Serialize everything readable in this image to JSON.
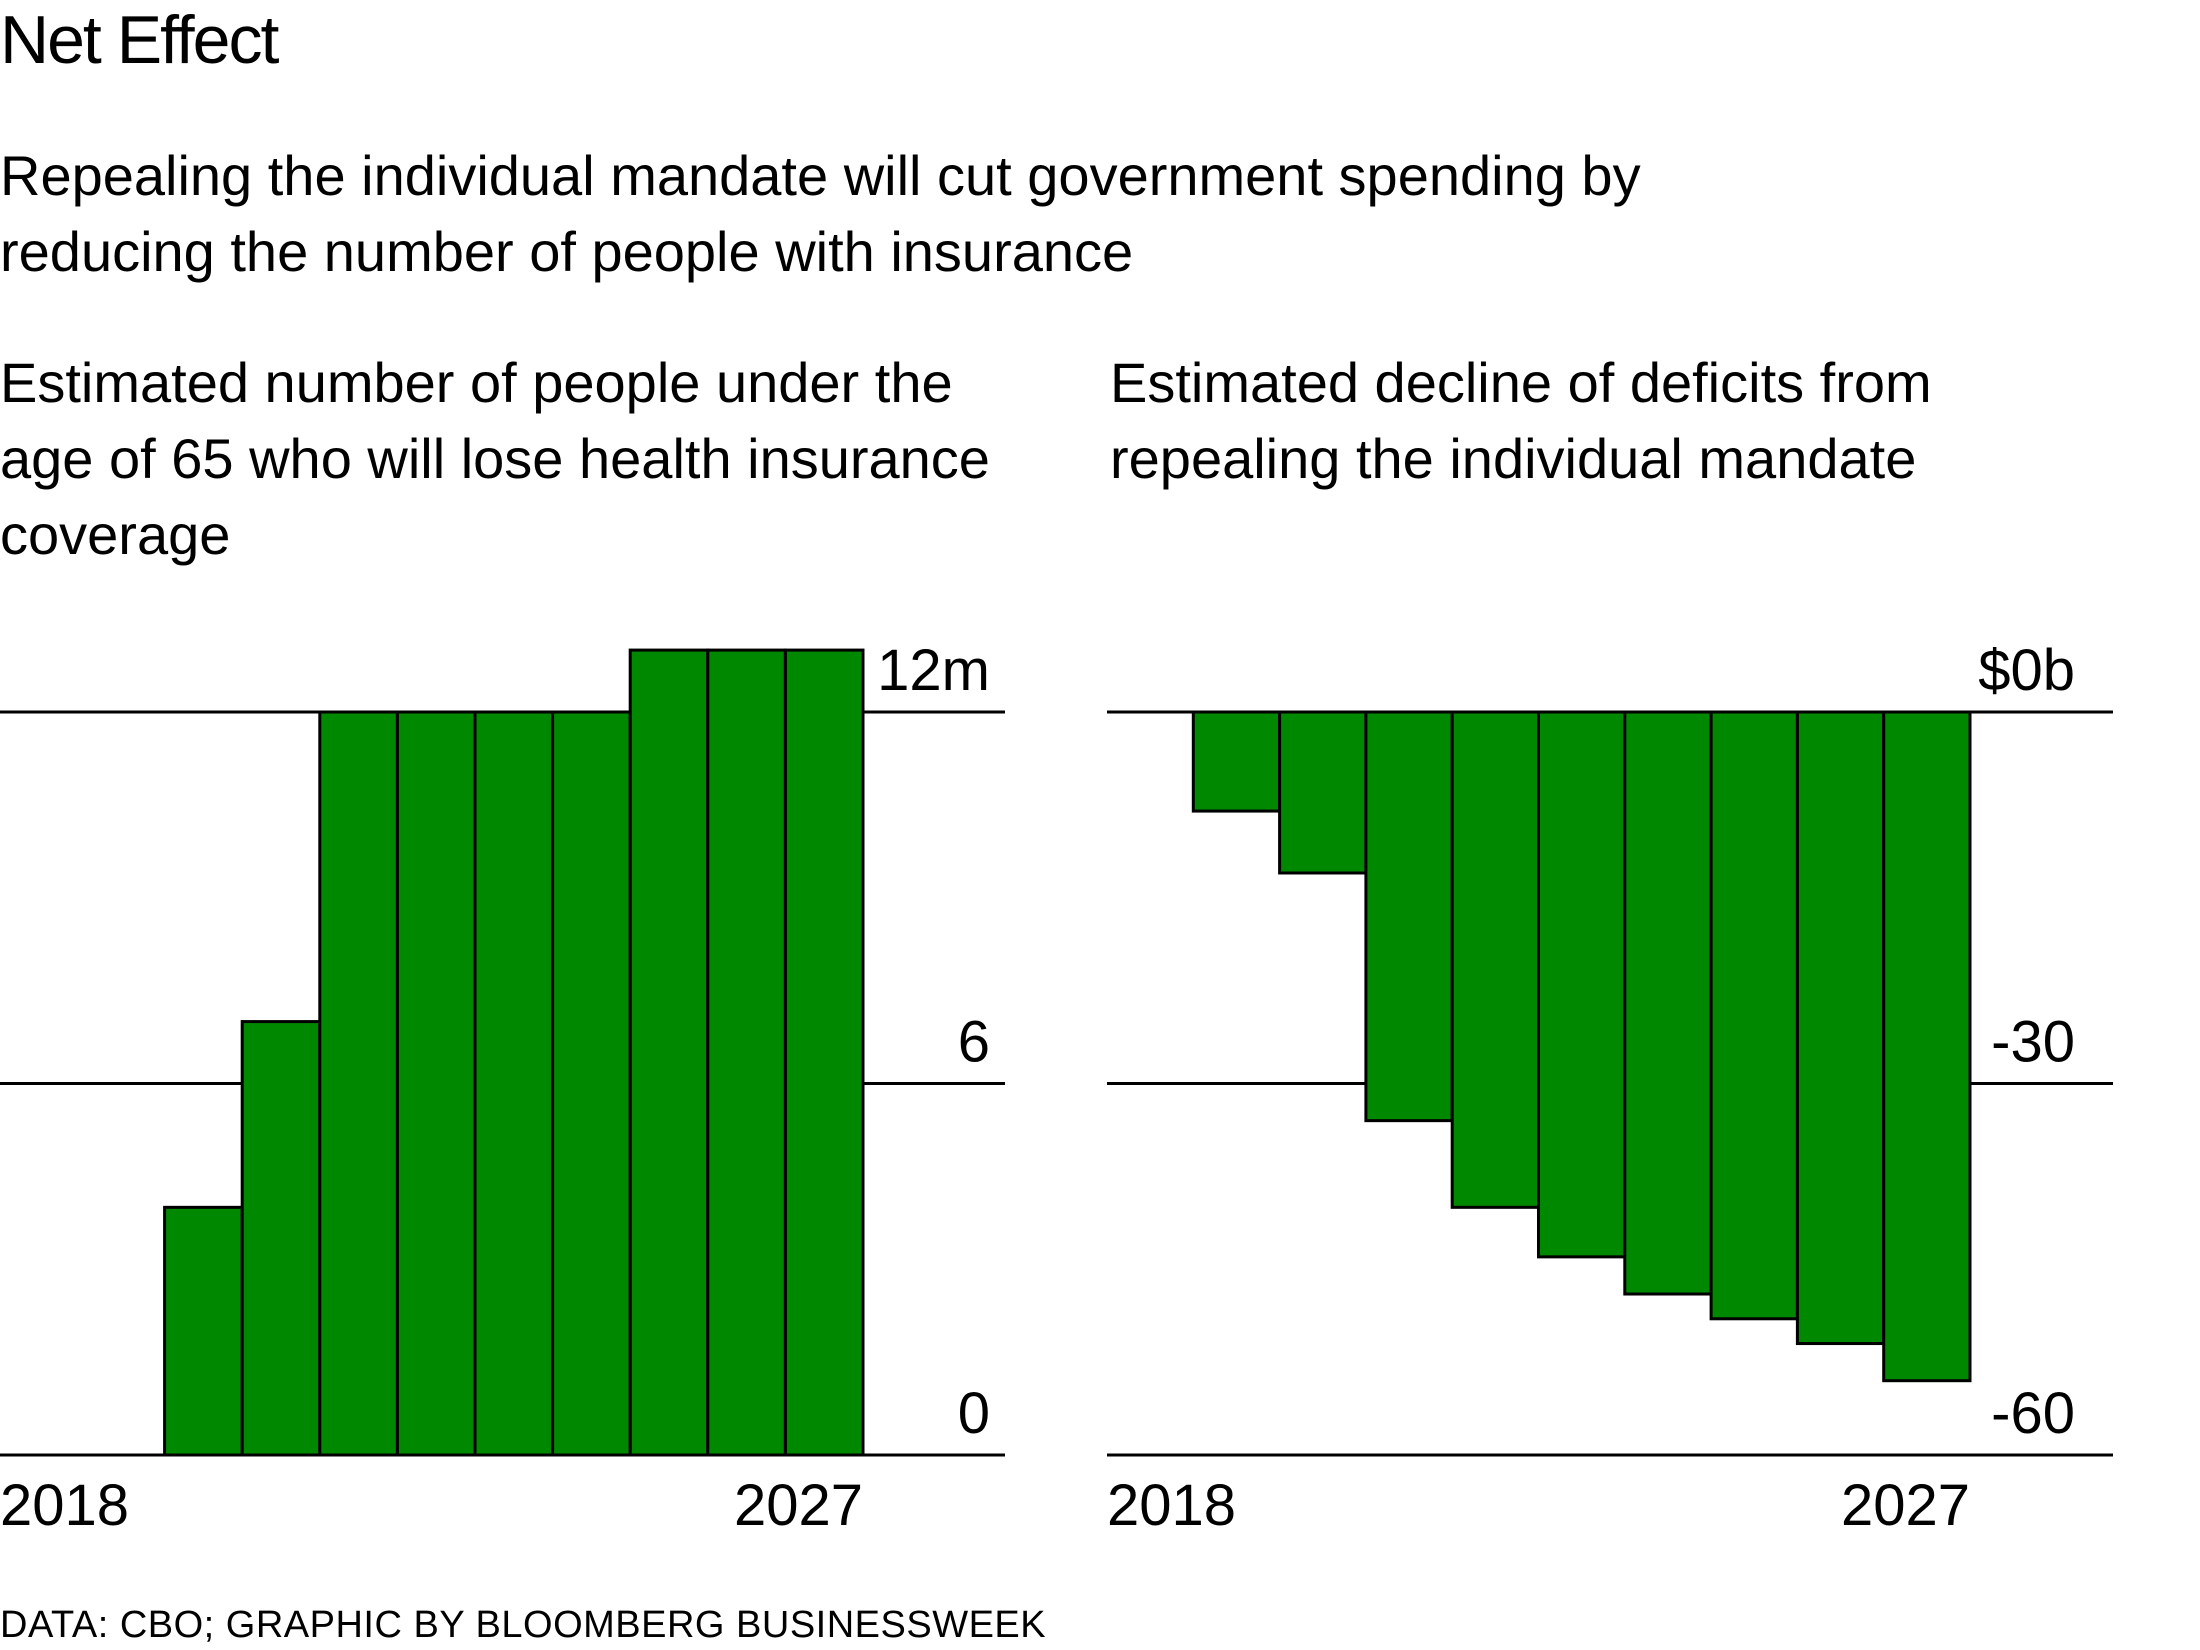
{
  "header": {
    "title": "Net Effect",
    "subtitle": "Repealing the individual mandate will cut government spending by reducing the number of people with insurance"
  },
  "colors": {
    "bar_fill": "#008800",
    "bar_stroke": "#000000",
    "gridline": "#000000",
    "background": "#ffffff"
  },
  "chart_data": [
    {
      "type": "bar",
      "title": "Estimated number of people under the age of 65 who will lose health insurance coverage",
      "categories": [
        "2018",
        "2019",
        "2020",
        "2021",
        "2022",
        "2023",
        "2024",
        "2025",
        "2026",
        "2027"
      ],
      "values": [
        0,
        4,
        7,
        12,
        12,
        12,
        12,
        13,
        13,
        13
      ],
      "ylim": [
        0,
        12
      ],
      "y_ticks": [
        {
          "value": 12,
          "label": "12m"
        },
        {
          "value": 6,
          "label": "6"
        },
        {
          "value": 0,
          "label": "0"
        }
      ],
      "x_tick_labels": [
        {
          "category": "2018",
          "label": "2018"
        },
        {
          "category": "2027",
          "label": "2027"
        }
      ],
      "xlabel": "",
      "ylabel": "",
      "grid": true
    },
    {
      "type": "bar",
      "title": "Estimated decline of deficits from repealing the individual mandate",
      "categories": [
        "2018",
        "2019",
        "2020",
        "2021",
        "2022",
        "2023",
        "2024",
        "2025",
        "2026",
        "2027"
      ],
      "values": [
        0,
        -8,
        -13,
        -33,
        -40,
        -44,
        -47,
        -49,
        -51,
        -54
      ],
      "ylim": [
        -60,
        0
      ],
      "y_ticks": [
        {
          "value": 0,
          "label": "$0b"
        },
        {
          "value": -30,
          "label": "-30"
        },
        {
          "value": -60,
          "label": "-60"
        }
      ],
      "x_tick_labels": [
        {
          "category": "2018",
          "label": "2018"
        },
        {
          "category": "2027",
          "label": "2027"
        }
      ],
      "xlabel": "",
      "ylabel": "",
      "grid": true
    }
  ],
  "footer": {
    "source": "DATA: CBO; GRAPHIC BY BLOOMBERG BUSINESSWEEK"
  }
}
